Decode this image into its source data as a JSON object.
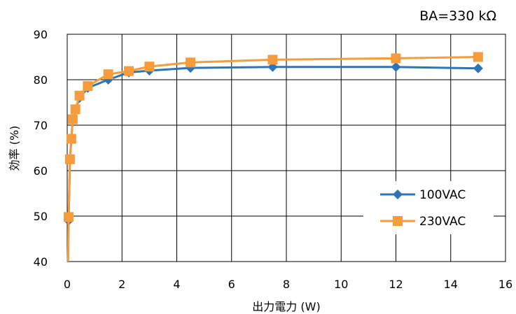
{
  "chart_data": {
    "type": "line",
    "annotation": "BA=330 kΩ",
    "xlabel": "出力電力 (W)",
    "ylabel": "効率 (%)",
    "xlim": [
      0,
      16
    ],
    "ylim": [
      40,
      90
    ],
    "xticks": [
      0,
      2,
      4,
      6,
      8,
      10,
      12,
      14,
      16
    ],
    "yticks": [
      40,
      50,
      60,
      70,
      80,
      90
    ],
    "xtick_labels": [
      "0",
      "2",
      "4",
      "6",
      "8",
      "10",
      "12",
      "14",
      "16"
    ],
    "ytick_labels": [
      "40",
      "50",
      "60",
      "70",
      "80",
      "90"
    ],
    "grid": true,
    "legend_position": "lower-right",
    "series": [
      {
        "name": "100VAC",
        "color": "#2E75B6",
        "marker": "diamond",
        "x": [
          0.03,
          0.05,
          0.1,
          0.15,
          0.2,
          0.3,
          0.45,
          0.75,
          1.5,
          2.25,
          3.0,
          4.5,
          7.5,
          12.0,
          15.0
        ],
        "y": [
          40.0,
          49.0,
          62.3,
          66.8,
          71.2,
          73.4,
          76.0,
          78.2,
          80.0,
          81.6,
          82.0,
          82.6,
          82.8,
          82.8,
          82.5
        ]
      },
      {
        "name": "230VAC",
        "color": "#F59D3D",
        "marker": "square",
        "x": [
          0.03,
          0.05,
          0.1,
          0.15,
          0.2,
          0.3,
          0.45,
          0.75,
          1.5,
          2.25,
          3.0,
          4.5,
          7.5,
          12.0,
          15.0
        ],
        "y": [
          40.0,
          49.8,
          62.5,
          67.0,
          71.3,
          73.5,
          76.5,
          78.6,
          81.2,
          81.9,
          82.9,
          83.8,
          84.4,
          84.7,
          85.0
        ]
      }
    ]
  }
}
